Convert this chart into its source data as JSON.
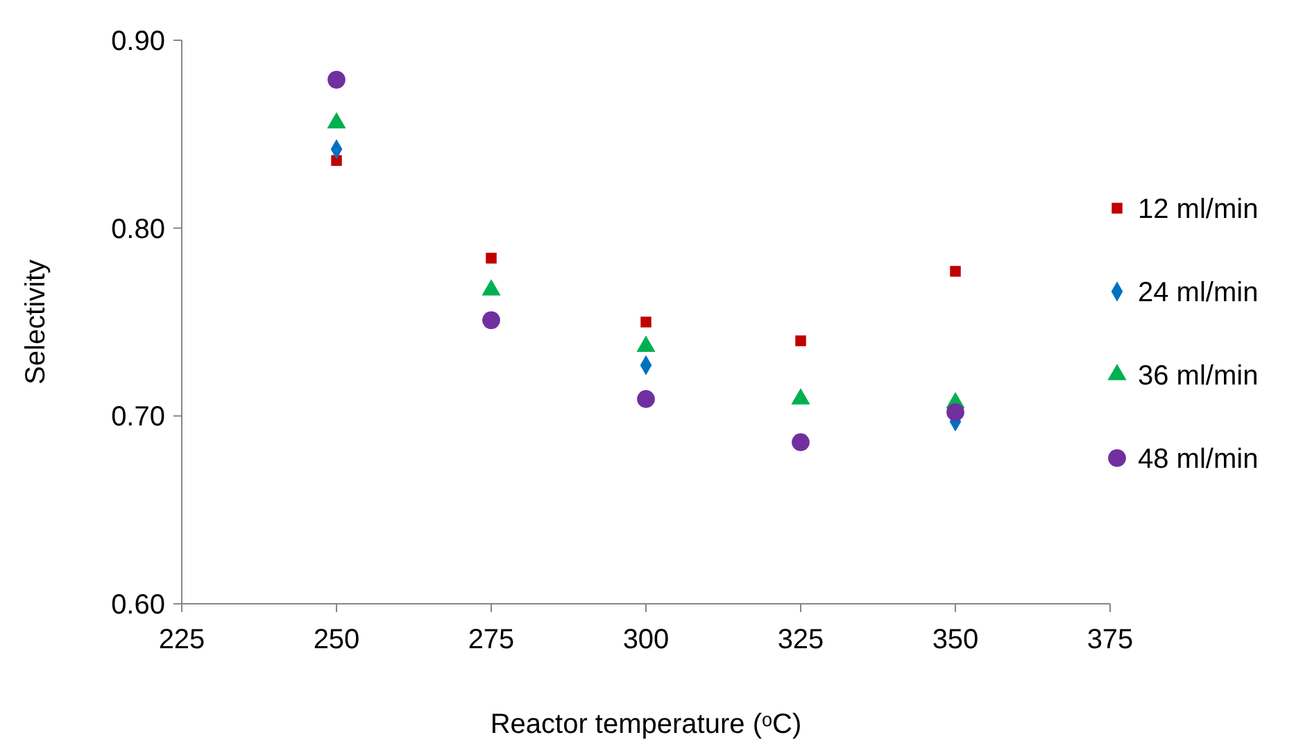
{
  "chart_data": {
    "type": "scatter",
    "xlabel": "Reactor temperature (ᵒC)",
    "ylabel": "Selectivity",
    "x": [
      250,
      275,
      300,
      325,
      350
    ],
    "series": [
      {
        "name": "12 ml/min",
        "color": "#c00000",
        "marker": "square",
        "values": [
          0.836,
          0.784,
          0.75,
          0.74,
          0.777
        ]
      },
      {
        "name": "24 ml/min",
        "color": "#0070c0",
        "marker": "diamond",
        "values": [
          0.842,
          null,
          0.727,
          null,
          0.697
        ]
      },
      {
        "name": "36 ml/min",
        "color": "#00b050",
        "marker": "triangle",
        "values": [
          0.856,
          0.767,
          0.737,
          0.709,
          0.707
        ]
      },
      {
        "name": "48 ml/min",
        "color": "#7030a0",
        "marker": "circle",
        "values": [
          0.879,
          0.751,
          0.709,
          0.686,
          0.702
        ]
      }
    ],
    "xlim": [
      225,
      375
    ],
    "xticks": [
      225,
      250,
      275,
      300,
      325,
      350,
      375
    ],
    "ylim": [
      0.6,
      0.9
    ],
    "yticks": [
      {
        "value": 0.6,
        "label": "0.60"
      },
      {
        "value": 0.7,
        "label": "0.70"
      },
      {
        "value": 0.8,
        "label": "0.80"
      },
      {
        "value": 0.9,
        "label": "0.90"
      }
    ],
    "grid": false,
    "legend": "right"
  }
}
